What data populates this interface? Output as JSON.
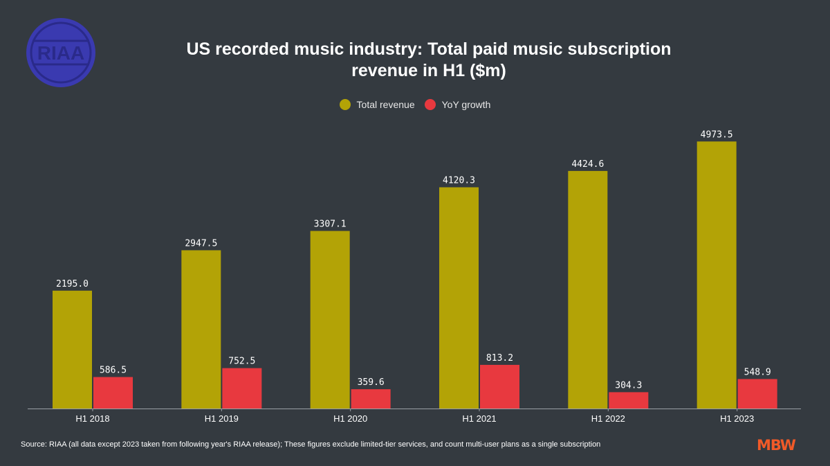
{
  "header": {
    "title_line1": "US recorded music industry: Total paid music subscription",
    "title_line2": "revenue in H1 ($m)",
    "logo_text": "RIAA"
  },
  "colors": {
    "background": "#343a40",
    "total_revenue": "#b3a306",
    "yoy_growth": "#e8393f",
    "logo": "#3a3ab0"
  },
  "chart_data": {
    "type": "bar",
    "categories": [
      "H1 2018",
      "H1 2019",
      "H1 2020",
      "H1 2021",
      "H1 2022",
      "H1 2023"
    ],
    "series": [
      {
        "name": "Total revenue",
        "values": [
          2195.0,
          2947.5,
          3307.1,
          4120.3,
          4424.6,
          4973.5
        ]
      },
      {
        "name": "YoY growth",
        "values": [
          586.5,
          752.5,
          359.6,
          813.2,
          304.3,
          548.9
        ]
      }
    ],
    "value_labels": {
      "Total revenue": [
        "2195.0",
        "2947.5",
        "3307.1",
        "4120.3",
        "4424.6",
        "4973.5"
      ],
      "YoY growth": [
        "586.5",
        "752.5",
        "359.6",
        "813.2",
        "304.3",
        "548.9"
      ]
    },
    "ylim": [
      0,
      5300
    ],
    "grid": false,
    "legend_position": "top-center"
  },
  "footer": {
    "source": "Source: RIAA (all data except 2023 taken from following year's RIAA release); These figures exclude limited-tier services, and count multi-user plans as a single subscription",
    "brand": "MBW"
  }
}
